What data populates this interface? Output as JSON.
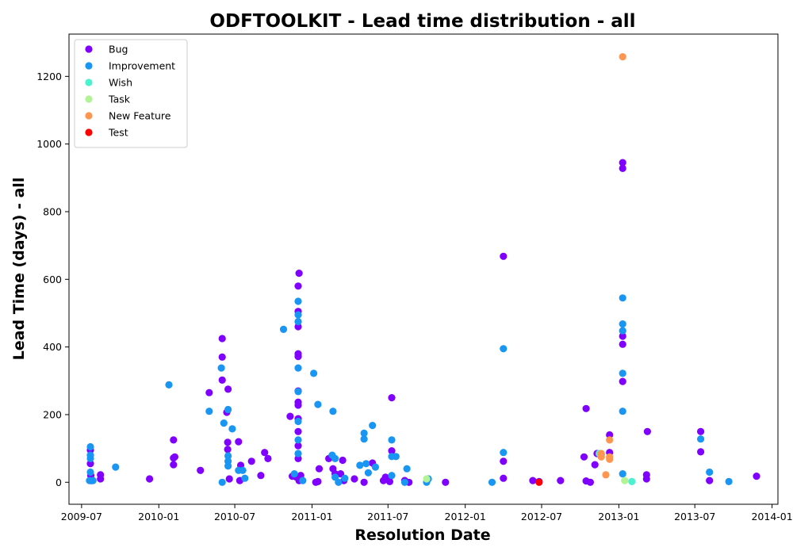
{
  "chart_data": {
    "type": "scatter",
    "title": "ODFTOOLKIT - Lead time distribution - all",
    "xlabel": "Resolution Date",
    "ylabel": "Lead Time (days) - all",
    "xlim": [
      "2009-06-01",
      "2014-01-15"
    ],
    "ylim": [
      -65,
      1325
    ],
    "x_ticks": [
      "2009-07",
      "2010-01",
      "2010-07",
      "2011-01",
      "2011-07",
      "2012-01",
      "2012-07",
      "2013-01",
      "2013-07",
      "2014-01"
    ],
    "y_ticks": [
      0,
      200,
      400,
      600,
      800,
      1000,
      1200
    ],
    "grid": false,
    "legend_position": "top-left",
    "series": [
      {
        "name": "Bug",
        "color": "#8000ff",
        "points": [
          [
            "2009-07-22",
            95
          ],
          [
            "2009-07-22",
            55
          ],
          [
            "2009-07-23",
            20
          ],
          [
            "2009-07-24",
            5
          ],
          [
            "2009-08-15",
            22
          ],
          [
            "2009-08-15",
            10
          ],
          [
            "2009-12-10",
            10
          ],
          [
            "2010-02-05",
            125
          ],
          [
            "2010-02-05",
            72
          ],
          [
            "2010-02-08",
            75
          ],
          [
            "2010-02-05",
            52
          ],
          [
            "2010-04-10",
            35
          ],
          [
            "2010-05-01",
            265
          ],
          [
            "2010-06-01",
            425
          ],
          [
            "2010-06-01",
            370
          ],
          [
            "2010-06-01",
            302
          ],
          [
            "2010-06-15",
            275
          ],
          [
            "2010-06-12",
            207
          ],
          [
            "2010-06-14",
            118
          ],
          [
            "2010-06-14",
            97
          ],
          [
            "2010-06-18",
            10
          ],
          [
            "2010-07-10",
            120
          ],
          [
            "2010-07-15",
            50
          ],
          [
            "2010-07-13",
            5
          ],
          [
            "2010-08-10",
            62
          ],
          [
            "2010-09-01",
            20
          ],
          [
            "2010-09-10",
            88
          ],
          [
            "2010-09-18",
            70
          ],
          [
            "2010-11-10",
            195
          ],
          [
            "2010-11-15",
            18
          ],
          [
            "2010-12-01",
            618
          ],
          [
            "2010-11-29",
            580
          ],
          [
            "2010-11-29",
            505
          ],
          [
            "2010-11-29",
            460
          ],
          [
            "2010-11-29",
            380
          ],
          [
            "2010-11-29",
            372
          ],
          [
            "2010-11-29",
            270
          ],
          [
            "2010-11-29",
            237
          ],
          [
            "2010-11-29",
            228
          ],
          [
            "2010-11-29",
            188
          ],
          [
            "2010-11-29",
            150
          ],
          [
            "2010-11-29",
            108
          ],
          [
            "2010-11-29",
            70
          ],
          [
            "2010-11-25",
            15
          ],
          [
            "2010-12-05",
            20
          ],
          [
            "2010-12-01",
            5
          ],
          [
            "2011-01-10",
            0
          ],
          [
            "2011-01-15",
            2
          ],
          [
            "2011-01-18",
            40
          ],
          [
            "2011-02-10",
            70
          ],
          [
            "2011-02-20",
            40
          ],
          [
            "2011-02-25",
            25
          ],
          [
            "2011-03-10",
            25
          ],
          [
            "2011-03-15",
            65
          ],
          [
            "2011-03-18",
            5
          ],
          [
            "2011-04-12",
            10
          ],
          [
            "2011-05-05",
            0
          ],
          [
            "2011-05-25",
            57
          ],
          [
            "2011-06-20",
            5
          ],
          [
            "2011-06-25",
            15
          ],
          [
            "2011-07-10",
            250
          ],
          [
            "2011-07-10",
            93
          ],
          [
            "2011-07-05",
            2
          ],
          [
            "2011-08-10",
            5
          ],
          [
            "2011-08-20",
            0
          ],
          [
            "2011-11-15",
            0
          ],
          [
            "2012-04-01",
            668
          ],
          [
            "2012-04-01",
            62
          ],
          [
            "2012-04-01",
            12
          ],
          [
            "2012-06-10",
            5
          ],
          [
            "2012-06-25",
            2
          ],
          [
            "2012-08-15",
            5
          ],
          [
            "2012-10-15",
            218
          ],
          [
            "2012-10-10",
            75
          ],
          [
            "2012-10-15",
            4
          ],
          [
            "2012-10-25",
            0
          ],
          [
            "2012-11-05",
            52
          ],
          [
            "2012-11-10",
            85
          ],
          [
            "2012-12-10",
            140
          ],
          [
            "2012-12-10",
            88
          ],
          [
            "2013-01-10",
            945
          ],
          [
            "2013-01-10",
            928
          ],
          [
            "2013-01-10",
            432
          ],
          [
            "2013-01-10",
            408
          ],
          [
            "2013-01-10",
            298
          ],
          [
            "2013-03-10",
            150
          ],
          [
            "2013-03-08",
            22
          ],
          [
            "2013-03-08",
            10
          ],
          [
            "2013-07-15",
            150
          ],
          [
            "2013-07-15",
            90
          ],
          [
            "2013-08-05",
            5
          ],
          [
            "2013-11-25",
            18
          ]
        ]
      },
      {
        "name": "Improvement",
        "color": "#1996f3",
        "points": [
          [
            "2009-07-22",
            105
          ],
          [
            "2009-07-22",
            80
          ],
          [
            "2009-07-22",
            70
          ],
          [
            "2009-07-22",
            30
          ],
          [
            "2009-07-20",
            5
          ],
          [
            "2009-07-28",
            5
          ],
          [
            "2009-09-20",
            45
          ],
          [
            "2010-01-25",
            288
          ],
          [
            "2010-05-01",
            210
          ],
          [
            "2010-05-30",
            338
          ],
          [
            "2010-06-05",
            175
          ],
          [
            "2010-06-01",
            0
          ],
          [
            "2010-06-15",
            215
          ],
          [
            "2010-06-15",
            78
          ],
          [
            "2010-06-15",
            62
          ],
          [
            "2010-06-15",
            48
          ],
          [
            "2010-06-25",
            158
          ],
          [
            "2010-07-10",
            35
          ],
          [
            "2010-07-20",
            35
          ],
          [
            "2010-07-25",
            12
          ],
          [
            "2010-10-25",
            452
          ],
          [
            "2010-11-29",
            535
          ],
          [
            "2010-11-29",
            495
          ],
          [
            "2010-11-29",
            475
          ],
          [
            "2010-11-29",
            338
          ],
          [
            "2010-11-29",
            268
          ],
          [
            "2010-11-29",
            180
          ],
          [
            "2010-11-29",
            125
          ],
          [
            "2010-11-29",
            85
          ],
          [
            "2010-11-20",
            25
          ],
          [
            "2010-12-10",
            5
          ],
          [
            "2011-01-05",
            322
          ],
          [
            "2011-01-15",
            230
          ],
          [
            "2011-02-20",
            210
          ],
          [
            "2011-02-18",
            80
          ],
          [
            "2011-02-25",
            70
          ],
          [
            "2011-02-25",
            15
          ],
          [
            "2011-03-05",
            0
          ],
          [
            "2011-03-20",
            12
          ],
          [
            "2011-05-05",
            145
          ],
          [
            "2011-05-05",
            128
          ],
          [
            "2011-04-25",
            50
          ],
          [
            "2011-05-10",
            55
          ],
          [
            "2011-05-15",
            28
          ],
          [
            "2011-05-25",
            168
          ],
          [
            "2011-06-01",
            45
          ],
          [
            "2011-07-10",
            125
          ],
          [
            "2011-07-10",
            76
          ],
          [
            "2011-07-20",
            76
          ],
          [
            "2011-07-10",
            20
          ],
          [
            "2011-08-15",
            40
          ],
          [
            "2011-08-10",
            0
          ],
          [
            "2011-10-01",
            0
          ],
          [
            "2011-10-05",
            10
          ],
          [
            "2012-03-05",
            0
          ],
          [
            "2012-04-01",
            395
          ],
          [
            "2012-04-01",
            88
          ],
          [
            "2013-01-10",
            545
          ],
          [
            "2013-01-10",
            468
          ],
          [
            "2013-01-10",
            448
          ],
          [
            "2013-01-10",
            322
          ],
          [
            "2013-01-10",
            210
          ],
          [
            "2013-01-10",
            25
          ],
          [
            "2013-07-15",
            128
          ],
          [
            "2013-08-05",
            30
          ],
          [
            "2013-09-20",
            2
          ],
          [
            "2012-11-20",
            82
          ]
        ]
      },
      {
        "name": "Wish",
        "color": "#4cf2ce",
        "points": [
          [
            "2013-02-01",
            2
          ],
          [
            "2012-11-15",
            85
          ]
        ]
      },
      {
        "name": "Task",
        "color": "#b2f396",
        "points": [
          [
            "2011-10-01",
            10
          ],
          [
            "2013-01-15",
            5
          ]
        ]
      },
      {
        "name": "New Feature",
        "color": "#ff964f",
        "points": [
          [
            "2013-01-10",
            1258
          ],
          [
            "2012-12-10",
            125
          ],
          [
            "2012-11-20",
            85
          ],
          [
            "2012-11-20",
            75
          ],
          [
            "2012-12-10",
            75
          ],
          [
            "2012-12-10",
            68
          ],
          [
            "2012-12-01",
            22
          ]
        ]
      },
      {
        "name": "Test",
        "color": "#ff0000",
        "points": [
          [
            "2012-06-25",
            0
          ]
        ]
      }
    ]
  }
}
